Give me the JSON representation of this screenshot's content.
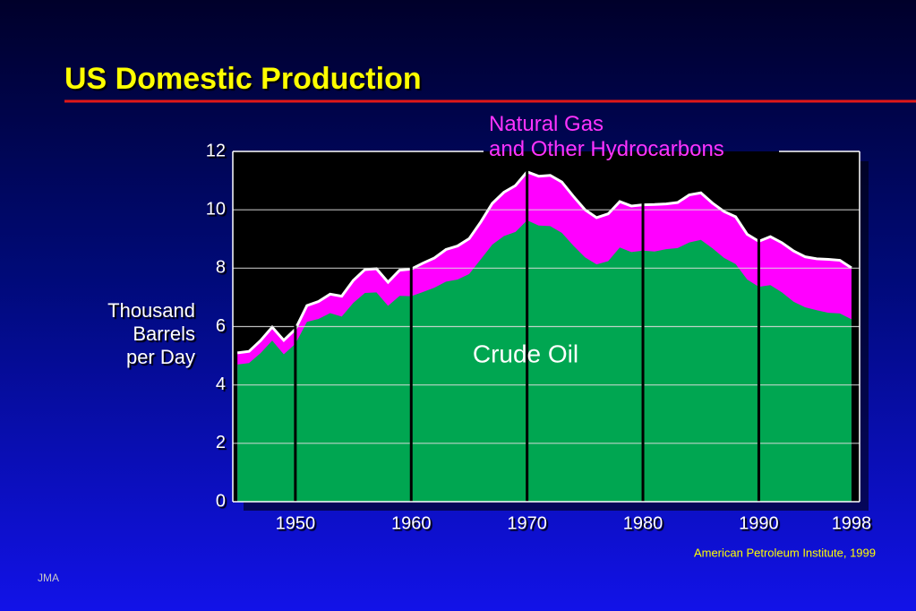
{
  "chart_data": {
    "type": "stacked-area",
    "title": "US Domestic Production",
    "ylabel": "Thousand\nBarrels\nper Day",
    "source": "American Petroleum Institute, 1999",
    "footer": "JMA",
    "x": [
      1945,
      1946,
      1947,
      1948,
      1949,
      1950,
      1951,
      1952,
      1953,
      1954,
      1955,
      1956,
      1957,
      1958,
      1959,
      1960,
      1961,
      1962,
      1963,
      1964,
      1965,
      1966,
      1967,
      1968,
      1969,
      1970,
      1971,
      1972,
      1973,
      1974,
      1975,
      1976,
      1977,
      1978,
      1979,
      1980,
      1981,
      1982,
      1983,
      1984,
      1985,
      1986,
      1987,
      1988,
      1989,
      1990,
      1991,
      1992,
      1993,
      1994,
      1995,
      1996,
      1997,
      1998
    ],
    "series": [
      {
        "name": "Crude Oil",
        "color": "#00a651",
        "values": [
          4.7,
          4.75,
          5.09,
          5.52,
          5.05,
          5.41,
          6.16,
          6.26,
          6.46,
          6.34,
          6.81,
          7.15,
          7.17,
          6.71,
          7.05,
          7.04,
          7.18,
          7.33,
          7.54,
          7.61,
          7.8,
          8.3,
          8.81,
          9.1,
          9.24,
          9.64,
          9.46,
          9.44,
          9.21,
          8.77,
          8.37,
          8.13,
          8.24,
          8.71,
          8.55,
          8.6,
          8.57,
          8.65,
          8.69,
          8.88,
          8.97,
          8.68,
          8.35,
          8.14,
          7.61,
          7.36,
          7.42,
          7.17,
          6.85,
          6.66,
          6.56,
          6.47,
          6.45,
          6.25
        ]
      },
      {
        "name": "Natural Gas\nand Other Hydrocarbons",
        "color": "#ff00ff",
        "values": [
          0.4,
          0.4,
          0.43,
          0.46,
          0.48,
          0.5,
          0.56,
          0.6,
          0.65,
          0.7,
          0.77,
          0.8,
          0.81,
          0.81,
          0.88,
          0.93,
          0.99,
          1.02,
          1.1,
          1.15,
          1.21,
          1.28,
          1.41,
          1.5,
          1.59,
          1.66,
          1.69,
          1.74,
          1.74,
          1.69,
          1.63,
          1.6,
          1.62,
          1.57,
          1.58,
          1.57,
          1.61,
          1.55,
          1.56,
          1.63,
          1.61,
          1.55,
          1.59,
          1.62,
          1.55,
          1.56,
          1.66,
          1.7,
          1.74,
          1.73,
          1.76,
          1.83,
          1.82,
          1.76
        ]
      }
    ],
    "xlim": [
      1944.6,
      1998.7
    ],
    "xticks": [
      1950,
      1960,
      1970,
      1980,
      1990,
      1998
    ],
    "xgrid_lines": [
      1950,
      1960,
      1970,
      1980,
      1990
    ],
    "ylim": [
      0,
      12
    ],
    "yticks": [
      0,
      2,
      4,
      6,
      8,
      10,
      12
    ],
    "grid": true
  }
}
